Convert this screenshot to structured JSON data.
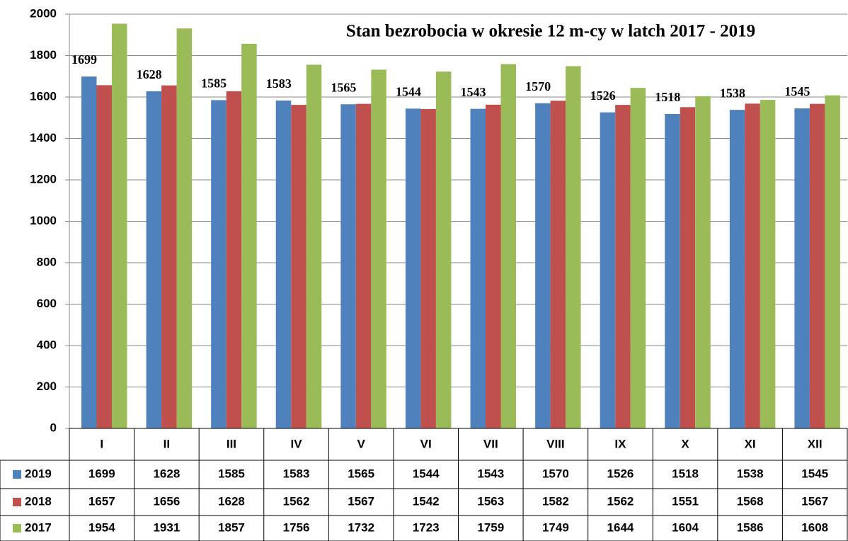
{
  "chart_data": {
    "type": "bar",
    "title": "Stan bezrobocia w okresie 12 m-cy w latch 2017 - 2019",
    "categories": [
      "I",
      "II",
      "III",
      "IV",
      "V",
      "VI",
      "VII",
      "VIII",
      "IX",
      "X",
      "XI",
      "XII"
    ],
    "series": [
      {
        "name": "2019",
        "color": "#4f81bd",
        "values": [
          1699,
          1628,
          1585,
          1583,
          1565,
          1544,
          1543,
          1570,
          1526,
          1518,
          1538,
          1545
        ]
      },
      {
        "name": "2018",
        "color": "#c0504d",
        "values": [
          1657,
          1656,
          1628,
          1562,
          1567,
          1542,
          1563,
          1582,
          1562,
          1551,
          1568,
          1567
        ]
      },
      {
        "name": "2017",
        "color": "#9bbb59",
        "values": [
          1954,
          1931,
          1857,
          1756,
          1732,
          1723,
          1759,
          1749,
          1644,
          1604,
          1586,
          1608
        ]
      }
    ],
    "ylim": [
      0,
      2000
    ],
    "yticks": [
      0,
      200,
      400,
      600,
      800,
      1000,
      1200,
      1400,
      1600,
      1800,
      2000
    ],
    "grid": true
  }
}
